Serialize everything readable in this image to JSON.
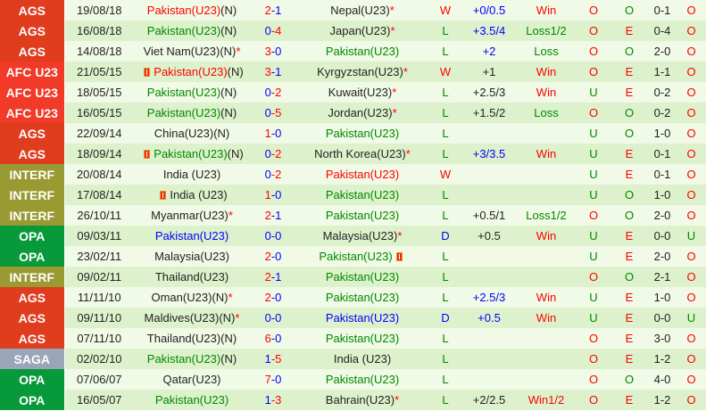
{
  "colors": {
    "AGS": "#e03c1e",
    "AFC U23": "#f23a28",
    "INTERF": "#9a9a33",
    "OPA": "#089a3a",
    "SAGA": "#99a6b8"
  },
  "rows": [
    {
      "comp": "AGS",
      "date": "19/08/18",
      "home": "Pakistan(U23)",
      "home_n": "(N)",
      "home_star": "",
      "home_card": false,
      "score": "2-1",
      "away": "Nepal(U23)",
      "away_star": "*",
      "away_card": false,
      "result": "W",
      "hc": "+0/0.5",
      "hc_color": "blue",
      "hc_result": "Win",
      "ou": "O",
      "oe": "O",
      "ht": "0-1",
      "ht_ou": "O"
    },
    {
      "comp": "AGS",
      "date": "16/08/18",
      "home": "Pakistan(U23)",
      "home_n": "(N)",
      "home_star": "",
      "home_card": false,
      "score": "0-4",
      "away": "Japan(U23)",
      "away_star": "*",
      "away_card": false,
      "result": "L",
      "hc": "+3.5/4",
      "hc_color": "blue",
      "hc_result": "Loss1/2",
      "ou": "O",
      "oe": "E",
      "ht": "0-4",
      "ht_ou": "O"
    },
    {
      "comp": "AGS",
      "date": "14/08/18",
      "home": "Viet Nam(U23)",
      "home_n": "(N)",
      "home_star": "*",
      "home_card": false,
      "score": "3-0",
      "away": "Pakistan(U23)",
      "away_star": "",
      "away_card": false,
      "result": "L",
      "hc": "+2",
      "hc_color": "blue",
      "hc_result": "Loss",
      "ou": "O",
      "oe": "O",
      "ht": "2-0",
      "ht_ou": "O"
    },
    {
      "comp": "AFC U23",
      "date": "21/05/15",
      "home": "Pakistan(U23)",
      "home_n": "(N)",
      "home_star": "",
      "home_card": true,
      "score": "3-1",
      "away": "Kyrgyzstan(U23)",
      "away_star": "*",
      "away_card": false,
      "result": "W",
      "hc": "+1",
      "hc_color": "black",
      "hc_result": "Win",
      "ou": "O",
      "oe": "E",
      "ht": "1-1",
      "ht_ou": "O"
    },
    {
      "comp": "AFC U23",
      "date": "18/05/15",
      "home": "Pakistan(U23)",
      "home_n": "(N)",
      "home_star": "",
      "home_card": false,
      "score": "0-2",
      "away": "Kuwait(U23)",
      "away_star": "*",
      "away_card": false,
      "result": "L",
      "hc": "+2.5/3",
      "hc_color": "black",
      "hc_result": "Win",
      "ou": "U",
      "oe": "E",
      "ht": "0-2",
      "ht_ou": "O"
    },
    {
      "comp": "AFC U23",
      "date": "16/05/15",
      "home": "Pakistan(U23)",
      "home_n": "(N)",
      "home_star": "",
      "home_card": false,
      "score": "0-5",
      "away": "Jordan(U23)",
      "away_star": "*",
      "away_card": false,
      "result": "L",
      "hc": "+1.5/2",
      "hc_color": "black",
      "hc_result": "Loss",
      "ou": "O",
      "oe": "O",
      "ht": "0-2",
      "ht_ou": "O"
    },
    {
      "comp": "AGS",
      "date": "22/09/14",
      "home": "China(U23)",
      "home_n": "(N)",
      "home_star": "",
      "home_card": false,
      "score": "1-0",
      "away": "Pakistan(U23)",
      "away_star": "",
      "away_card": false,
      "result": "L",
      "hc": "",
      "hc_color": "black",
      "hc_result": "",
      "ou": "U",
      "oe": "O",
      "ht": "1-0",
      "ht_ou": "O"
    },
    {
      "comp": "AGS",
      "date": "18/09/14",
      "home": "Pakistan(U23)",
      "home_n": "(N)",
      "home_star": "",
      "home_card": true,
      "score": "0-2",
      "away": "North Korea(U23)",
      "away_star": "*",
      "away_card": false,
      "result": "L",
      "hc": "+3/3.5",
      "hc_color": "blue",
      "hc_result": "Win",
      "ou": "U",
      "oe": "E",
      "ht": "0-1",
      "ht_ou": "O"
    },
    {
      "comp": "INTERF",
      "date": "20/08/14",
      "home": "India (U23)",
      "home_n": "",
      "home_star": "",
      "home_card": false,
      "score": "0-2",
      "away": "Pakistan(U23)",
      "away_star": "",
      "away_card": false,
      "result": "W",
      "hc": "",
      "hc_color": "black",
      "hc_result": "",
      "ou": "U",
      "oe": "E",
      "ht": "0-1",
      "ht_ou": "O"
    },
    {
      "comp": "INTERF",
      "date": "17/08/14",
      "home": "India (U23)",
      "home_n": "",
      "home_star": "",
      "home_card": true,
      "score": "1-0",
      "away": "Pakistan(U23)",
      "away_star": "",
      "away_card": false,
      "result": "L",
      "hc": "",
      "hc_color": "black",
      "hc_result": "",
      "ou": "U",
      "oe": "O",
      "ht": "1-0",
      "ht_ou": "O"
    },
    {
      "comp": "INTERF",
      "date": "26/10/11",
      "home": "Myanmar(U23)",
      "home_n": "",
      "home_star": "*",
      "home_card": false,
      "score": "2-1",
      "away": "Pakistan(U23)",
      "away_star": "",
      "away_card": false,
      "result": "L",
      "hc": "+0.5/1",
      "hc_color": "black",
      "hc_result": "Loss1/2",
      "ou": "O",
      "oe": "O",
      "ht": "2-0",
      "ht_ou": "O"
    },
    {
      "comp": "OPA",
      "date": "09/03/11",
      "home": "Pakistan(U23)",
      "home_n": "",
      "home_star": "",
      "home_card": false,
      "score": "0-0",
      "away": "Malaysia(U23)",
      "away_star": "*",
      "away_card": false,
      "result": "D",
      "hc": "+0.5",
      "hc_color": "black",
      "hc_result": "Win",
      "ou": "U",
      "oe": "E",
      "ht": "0-0",
      "ht_ou": "U"
    },
    {
      "comp": "OPA",
      "date": "23/02/11",
      "home": "Malaysia(U23)",
      "home_n": "",
      "home_star": "",
      "home_card": false,
      "score": "2-0",
      "away": "Pakistan(U23)",
      "away_star": "",
      "away_card": true,
      "result": "L",
      "hc": "",
      "hc_color": "black",
      "hc_result": "",
      "ou": "U",
      "oe": "E",
      "ht": "2-0",
      "ht_ou": "O"
    },
    {
      "comp": "INTERF",
      "date": "09/02/11",
      "home": "Thailand(U23)",
      "home_n": "",
      "home_star": "",
      "home_card": false,
      "score": "2-1",
      "away": "Pakistan(U23)",
      "away_star": "",
      "away_card": false,
      "result": "L",
      "hc": "",
      "hc_color": "black",
      "hc_result": "",
      "ou": "O",
      "oe": "O",
      "ht": "2-1",
      "ht_ou": "O"
    },
    {
      "comp": "AGS",
      "date": "11/11/10",
      "home": "Oman(U23)",
      "home_n": "(N)",
      "home_star": "*",
      "home_card": false,
      "score": "2-0",
      "away": "Pakistan(U23)",
      "away_star": "",
      "away_card": false,
      "result": "L",
      "hc": "+2.5/3",
      "hc_color": "blue",
      "hc_result": "Win",
      "ou": "U",
      "oe": "E",
      "ht": "1-0",
      "ht_ou": "O"
    },
    {
      "comp": "AGS",
      "date": "09/11/10",
      "home": "Maldives(U23)",
      "home_n": "(N)",
      "home_star": "*",
      "home_card": false,
      "score": "0-0",
      "away": "Pakistan(U23)",
      "away_star": "",
      "away_card": false,
      "result": "D",
      "hc": "+0.5",
      "hc_color": "blue",
      "hc_result": "Win",
      "ou": "U",
      "oe": "E",
      "ht": "0-0",
      "ht_ou": "U"
    },
    {
      "comp": "AGS",
      "date": "07/11/10",
      "home": "Thailand(U23)",
      "home_n": "(N)",
      "home_star": "",
      "home_card": false,
      "score": "6-0",
      "away": "Pakistan(U23)",
      "away_star": "",
      "away_card": false,
      "result": "L",
      "hc": "",
      "hc_color": "black",
      "hc_result": "",
      "ou": "O",
      "oe": "E",
      "ht": "3-0",
      "ht_ou": "O"
    },
    {
      "comp": "SAGA",
      "date": "02/02/10",
      "home": "Pakistan(U23)",
      "home_n": "(N)",
      "home_star": "",
      "home_card": false,
      "score": "1-5",
      "away": "India (U23)",
      "away_star": "",
      "away_card": false,
      "result": "L",
      "hc": "",
      "hc_color": "black",
      "hc_result": "",
      "ou": "O",
      "oe": "E",
      "ht": "1-2",
      "ht_ou": "O"
    },
    {
      "comp": "OPA",
      "date": "07/06/07",
      "home": "Qatar(U23)",
      "home_n": "",
      "home_star": "",
      "home_card": false,
      "score": "7-0",
      "away": "Pakistan(U23)",
      "away_star": "",
      "away_card": false,
      "result": "L",
      "hc": "",
      "hc_color": "black",
      "hc_result": "",
      "ou": "O",
      "oe": "O",
      "ht": "4-0",
      "ht_ou": "O"
    },
    {
      "comp": "OPA",
      "date": "16/05/07",
      "home": "Pakistan(U23)",
      "home_n": "",
      "home_star": "",
      "home_card": false,
      "score": "1-3",
      "away": "Bahrain(U23)",
      "away_star": "*",
      "away_card": false,
      "result": "L",
      "hc": "+2/2.5",
      "hc_color": "black",
      "hc_result": "Win1/2",
      "ou": "O",
      "oe": "E",
      "ht": "1-2",
      "ht_ou": "O"
    }
  ]
}
